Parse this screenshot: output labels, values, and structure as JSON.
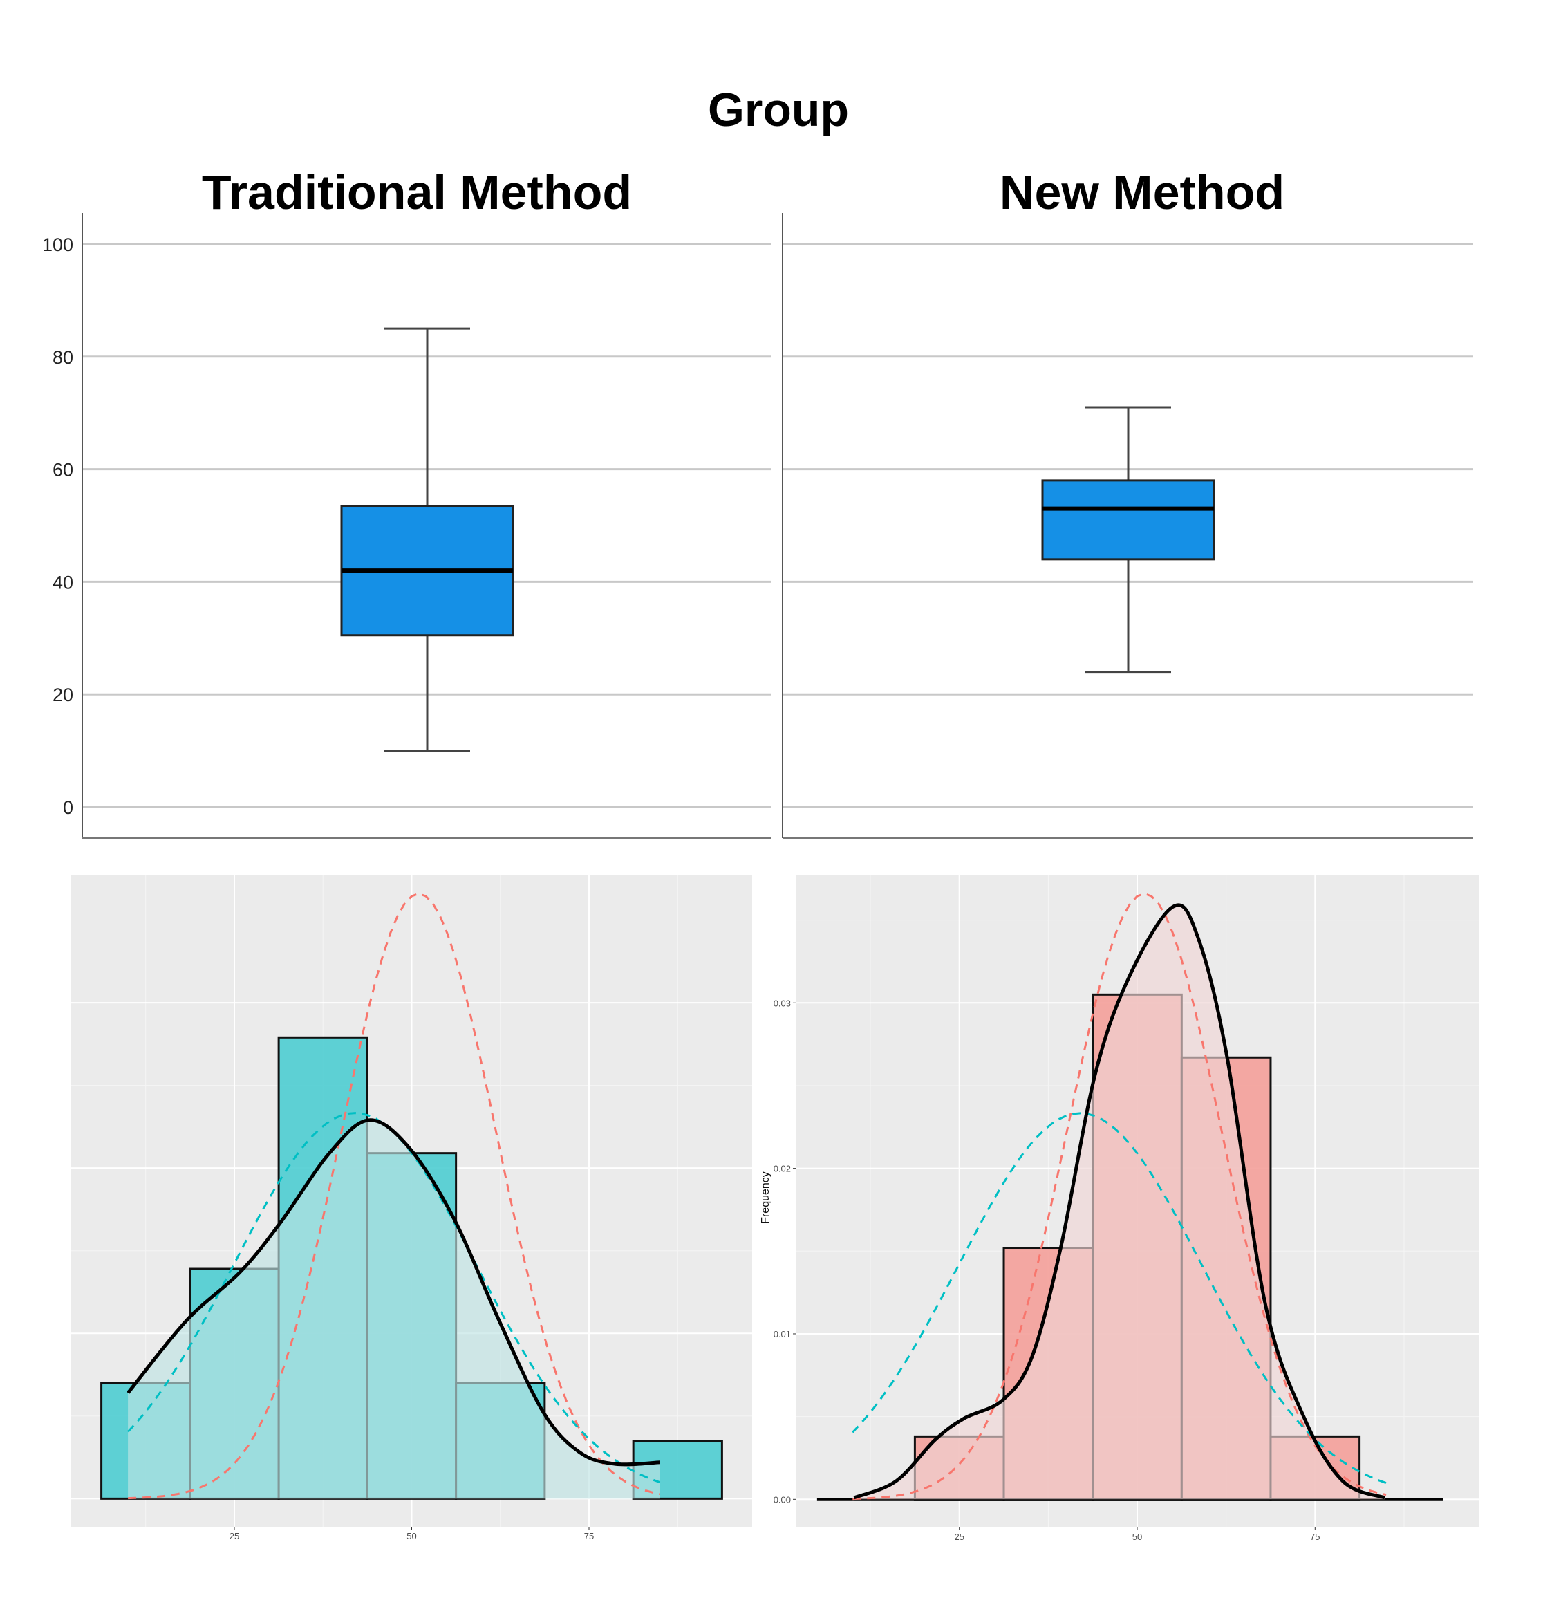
{
  "title": "Group",
  "chart_data": [
    {
      "type": "boxplot",
      "facet_label": "Group",
      "panels": [
        "Traditional Method",
        "New Method"
      ],
      "ylim": [
        -5,
        105
      ],
      "yticks": [
        "0",
        "20",
        "40",
        "60",
        "80",
        "100"
      ],
      "ytick_values": [
        0,
        20,
        40,
        60,
        80,
        100
      ],
      "grid": true,
      "box_color": "#1590e6",
      "series": [
        {
          "name": "Traditional Method",
          "min": 10,
          "q1": 30.5,
          "median": 42,
          "q3": 53.5,
          "max": 85
        },
        {
          "name": "New Method",
          "min": 24,
          "q1": 44,
          "median": 53,
          "q3": 58,
          "max": 71
        }
      ]
    },
    {
      "type": "histogram",
      "panel": "Traditional Method",
      "bin_edges": [
        6.25,
        18.75,
        31.25,
        43.75,
        56.25,
        68.75,
        81.25,
        93.75
      ],
      "values": [
        0.007,
        0.0139,
        0.0279,
        0.0209,
        0.007,
        0,
        0.0035
      ],
      "bar_color": "#4ecdd1",
      "density_fill": "#bfe3e3",
      "xlim": [
        2,
        98
      ],
      "ylim": [
        -0.0017,
        0.0377
      ],
      "xticks": [
        "25",
        "50",
        "75"
      ],
      "xtick_values": [
        25,
        50,
        75
      ],
      "yticks": [],
      "ylabel": "",
      "grid": true,
      "density": {
        "x": [
          10,
          18.3,
          25.8,
          31.5,
          38.4,
          44,
          49.7,
          56,
          62.3,
          68.6,
          73.7,
          78.7,
          85
        ],
        "y": [
          0.0064,
          0.0108,
          0.0137,
          0.0167,
          0.0209,
          0.0229,
          0.0212,
          0.0169,
          0.0108,
          0.0052,
          0.0028,
          0.0021,
          0.0022
        ]
      },
      "normal_curves": [
        {
          "color": "#f8766d",
          "mean": 51,
          "sd": 10.9,
          "range": [
            10,
            85
          ]
        },
        {
          "color": "#00bfc4",
          "mean": 42,
          "sd": 17.1,
          "range": [
            10,
            85
          ]
        }
      ]
    },
    {
      "type": "histogram",
      "panel": "New Method",
      "bin_edges": [
        6.25,
        18.75,
        31.25,
        43.75,
        56.25,
        68.75,
        81.25,
        93.75
      ],
      "values": [
        0,
        0.0038,
        0.0152,
        0.0305,
        0.0267,
        0.0038,
        0
      ],
      "bar_color": "#f4a09a",
      "density_fill": "#f0d6d6",
      "xlim": [
        2,
        98
      ],
      "ylim": [
        -0.0017,
        0.0377
      ],
      "xticks": [
        "25",
        "50",
        "75"
      ],
      "xtick_values": [
        25,
        50,
        75
      ],
      "yticks": [
        "0.00",
        "0.01",
        "0.02",
        "0.03"
      ],
      "ytick_values": [
        0,
        0.01,
        0.02,
        0.03
      ],
      "ylabel": "Frequency",
      "grid": true,
      "density": {
        "x": [
          10.2,
          16.1,
          21.6,
          25.7,
          31.1,
          35.2,
          39.3,
          44.1,
          48.9,
          55,
          58.5,
          62.6,
          68,
          73.5,
          78.9,
          84.8
        ],
        "y": [
          0.0001,
          0.0011,
          0.0036,
          0.0049,
          0.006,
          0.0086,
          0.0153,
          0.0257,
          0.0316,
          0.0358,
          0.034,
          0.0268,
          0.0118,
          0.0049,
          0.0011,
          0.0001
        ]
      },
      "normal_curves": [
        {
          "color": "#f8766d",
          "mean": 51,
          "sd": 10.9,
          "range": [
            10,
            85
          ]
        },
        {
          "color": "#00bfc4",
          "mean": 42,
          "sd": 17.1,
          "range": [
            10,
            85
          ]
        }
      ]
    }
  ]
}
